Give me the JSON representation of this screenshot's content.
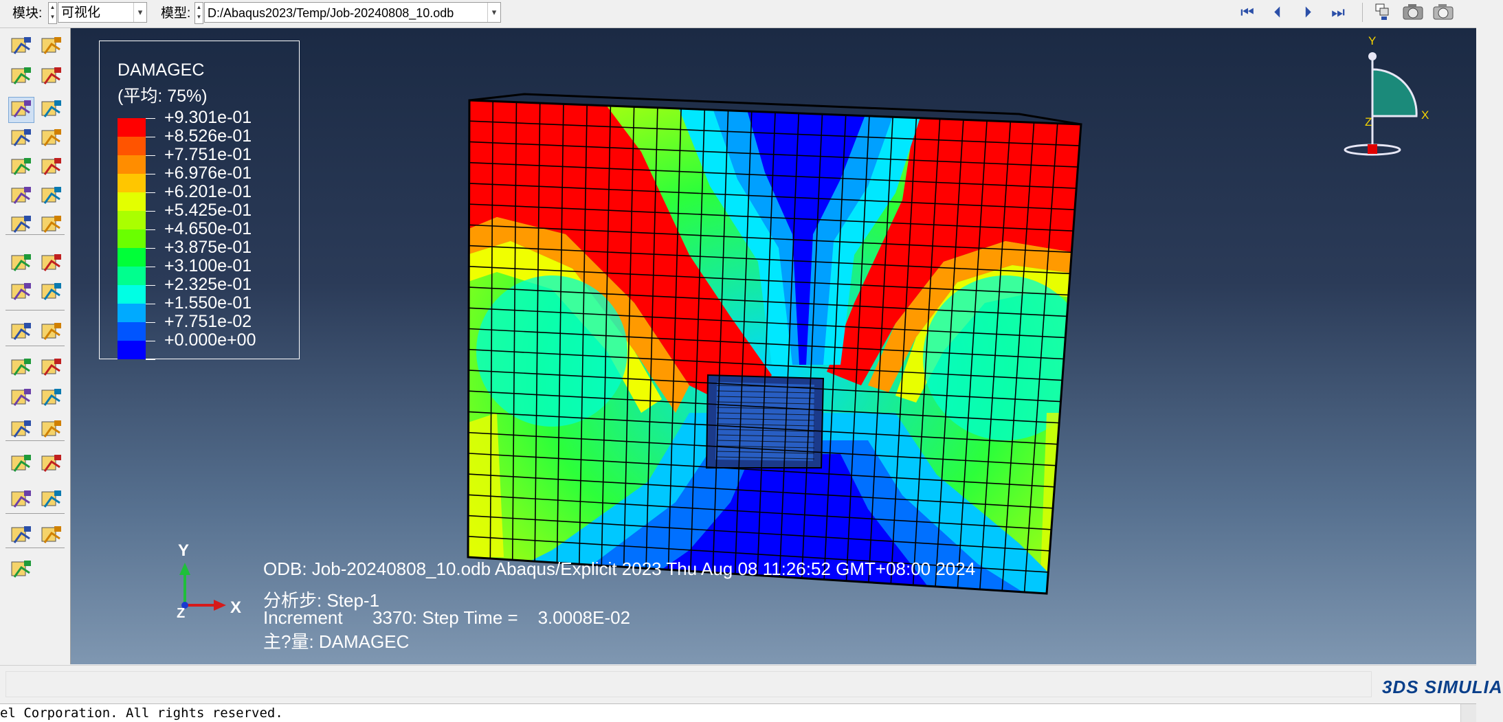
{
  "toolbar": {
    "module_label": "模块:",
    "module_value": "可视化",
    "model_label": "模型:",
    "model_value": "D:/Abaqus2023/Temp/Job-20240808_10.odb",
    "buttons": {
      "first": "⏮",
      "prev": "⏴",
      "next": "⏵",
      "last": "⏭"
    }
  },
  "legend": {
    "title": "DAMAGEC",
    "subtitle": "(平均: 75%)",
    "entries": [
      {
        "value": "+9.301e-01",
        "color": "#ff0000"
      },
      {
        "value": "+8.526e-01",
        "color": "#ff5400"
      },
      {
        "value": "+7.751e-01",
        "color": "#ff8d00"
      },
      {
        "value": "+6.976e-01",
        "color": "#ffc600"
      },
      {
        "value": "+6.201e-01",
        "color": "#e3ff00"
      },
      {
        "value": "+5.425e-01",
        "color": "#aaff00"
      },
      {
        "value": "+4.650e-01",
        "color": "#6aff00"
      },
      {
        "value": "+3.875e-01",
        "color": "#00ff38"
      },
      {
        "value": "+3.100e-01",
        "color": "#00ff8e"
      },
      {
        "value": "+2.325e-01",
        "color": "#00ffe4"
      },
      {
        "value": "+1.550e-01",
        "color": "#00aaff"
      },
      {
        "value": "+7.751e-02",
        "color": "#0055ff"
      },
      {
        "value": "+0.000e+00",
        "color": "#0000ff"
      }
    ]
  },
  "triad_top": {
    "y": "Y",
    "x": "X",
    "z": "Z"
  },
  "triad_bottom": {
    "y": "Y",
    "x": "X",
    "z": "Z"
  },
  "info": {
    "odb_line": "ODB: Job-20240808_10.odb    Abaqus/Explicit 2023    Thu Aug 08 11:26:52 GMT+08:00 2024",
    "step_line": "分析步: Step-1",
    "increment_line": "Increment      3370: Step Time =    3.0008E-02",
    "variable_line": "主?量: DAMAGEC"
  },
  "branding": "3DS SIMULIA",
  "message": "el Corporation.  All rights reserved.",
  "colors": {
    "viewport_top": "#1b2a44",
    "viewport_bottom": "#7f97b1",
    "toolbar_icon": "#2b4fa8"
  }
}
